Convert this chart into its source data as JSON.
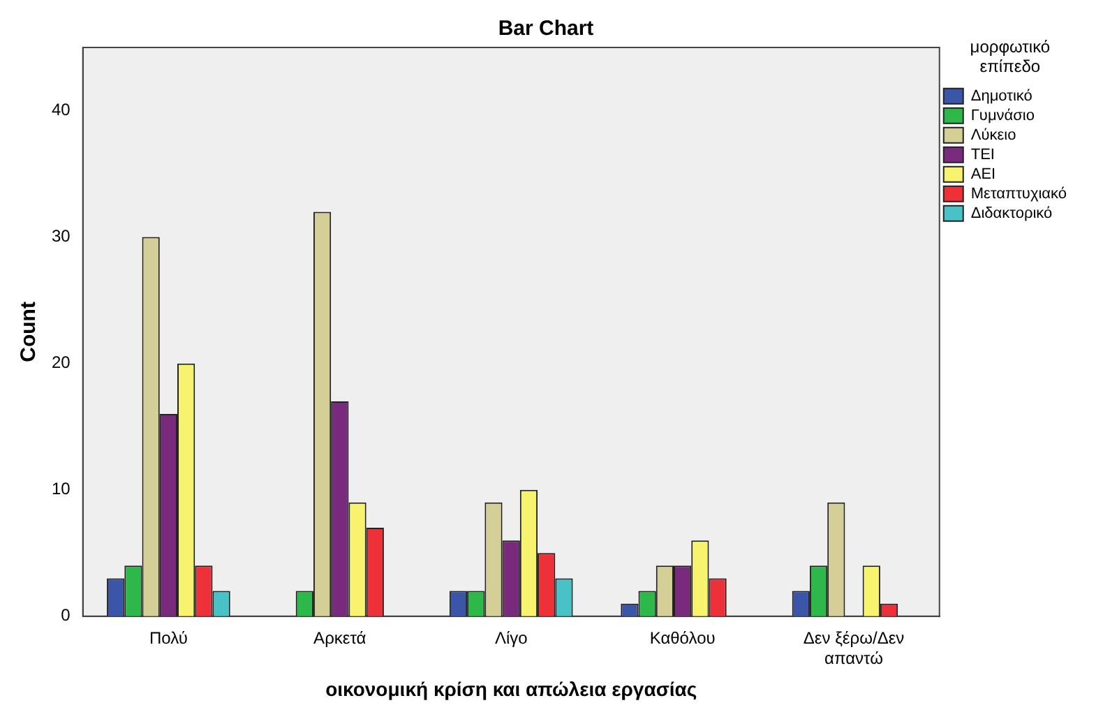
{
  "chart_data": {
    "type": "bar",
    "title": "Bar Chart",
    "xlabel": "οικονομική κρίση και απώλεια εργασίας",
    "ylabel": "Count",
    "legend_title": "μορφωτικό επίπεδο",
    "categories": [
      "Πολύ",
      "Αρκετά",
      "Λίγο",
      "Καθόλου",
      "Δεν ξέρω/Δεν απαντώ"
    ],
    "series": [
      {
        "name": "Δημοτικό",
        "color": "#3b55a8",
        "values": [
          3,
          null,
          2,
          1,
          2
        ]
      },
      {
        "name": "Γυμνάσιο",
        "color": "#2eb84a",
        "values": [
          4,
          2,
          2,
          2,
          4
        ]
      },
      {
        "name": "Λύκειο",
        "color": "#d4cf96",
        "values": [
          30,
          32,
          9,
          4,
          9
        ]
      },
      {
        "name": "ΤΕΙ",
        "color": "#7a2a7c",
        "values": [
          16,
          17,
          6,
          4,
          null
        ]
      },
      {
        "name": "ΑΕΙ",
        "color": "#f8f36e",
        "values": [
          20,
          9,
          10,
          6,
          4
        ]
      },
      {
        "name": "Μεταπτυχιακό",
        "color": "#ee3038",
        "values": [
          4,
          7,
          5,
          3,
          1
        ]
      },
      {
        "name": "Διδακτορικό",
        "color": "#48c2c6",
        "values": [
          2,
          null,
          3,
          null,
          null
        ]
      }
    ],
    "ylim": [
      0,
      45
    ],
    "yticks": [
      0,
      10,
      20,
      30,
      40
    ],
    "grid": false,
    "legend": "top right"
  }
}
